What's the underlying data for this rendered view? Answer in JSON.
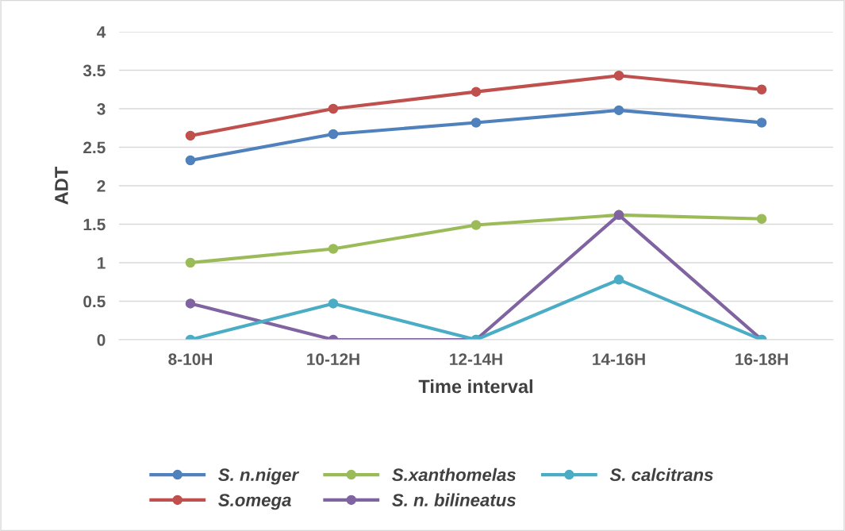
{
  "chart_data": {
    "type": "line",
    "xlabel": "Time interval",
    "ylabel": "ADT",
    "categories": [
      "8-10H",
      "10-12H",
      "12-14H",
      "14-16H",
      "16-18H"
    ],
    "series": [
      {
        "name": "S. n.niger",
        "color": "#4f81bd",
        "values": [
          2.33,
          2.67,
          2.82,
          2.98,
          2.82
        ]
      },
      {
        "name": "S.omega",
        "color": "#c0504d",
        "values": [
          2.65,
          3.0,
          3.22,
          3.43,
          3.25
        ]
      },
      {
        "name": "S.xanthomelas",
        "color": "#9bbb59",
        "values": [
          1.0,
          1.18,
          1.49,
          1.62,
          1.57
        ]
      },
      {
        "name": "S. n. bilineatus",
        "color": "#8064a2",
        "values": [
          0.47,
          0,
          0,
          1.62,
          0
        ]
      },
      {
        "name": "S. calcitrans",
        "color": "#4bacc6",
        "values": [
          0,
          0.47,
          0,
          0.78,
          0
        ]
      }
    ],
    "ylim": [
      0,
      4
    ],
    "yticks": [
      0,
      0.5,
      1,
      1.5,
      2,
      2.5,
      3,
      3.5,
      4
    ],
    "grid": "y",
    "legend": "bottom",
    "marker": "circle",
    "line_style": "solid"
  }
}
